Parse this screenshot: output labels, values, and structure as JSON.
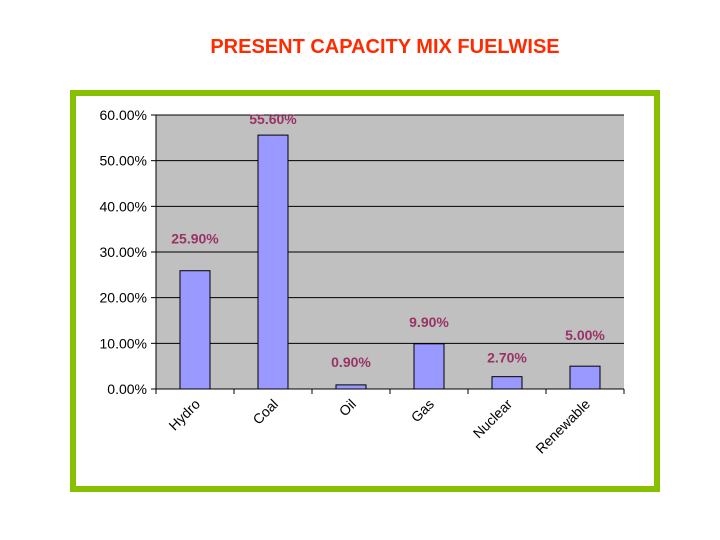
{
  "title": "PRESENT CAPACITY MIX FUELWISE",
  "colors": {
    "title": "#ff2a00",
    "frame_border": "#88c000",
    "plot_background": "#c0c0c0",
    "bar_fill": "#9999ff",
    "bar_stroke": "#000000",
    "data_label": "#993366"
  },
  "chart_data": {
    "type": "bar",
    "title": "PRESENT CAPACITY MIX FUELWISE",
    "categories": [
      "Hydro",
      "Coal",
      "Oil",
      "Gas",
      "Nuclear",
      "Renewable"
    ],
    "values": [
      25.9,
      55.6,
      0.9,
      9.9,
      2.7,
      5.0
    ],
    "data_labels": [
      "25.90%",
      "55.60%",
      "0.90%",
      "9.90%",
      "2.70%",
      "5.00%"
    ],
    "y_ticks": [
      "0.00%",
      "10.00%",
      "20.00%",
      "30.00%",
      "40.00%",
      "50.00%",
      "60.00%"
    ],
    "ylim": [
      0,
      60
    ],
    "grid": true,
    "legend": "none",
    "xlabel": "",
    "ylabel": ""
  }
}
